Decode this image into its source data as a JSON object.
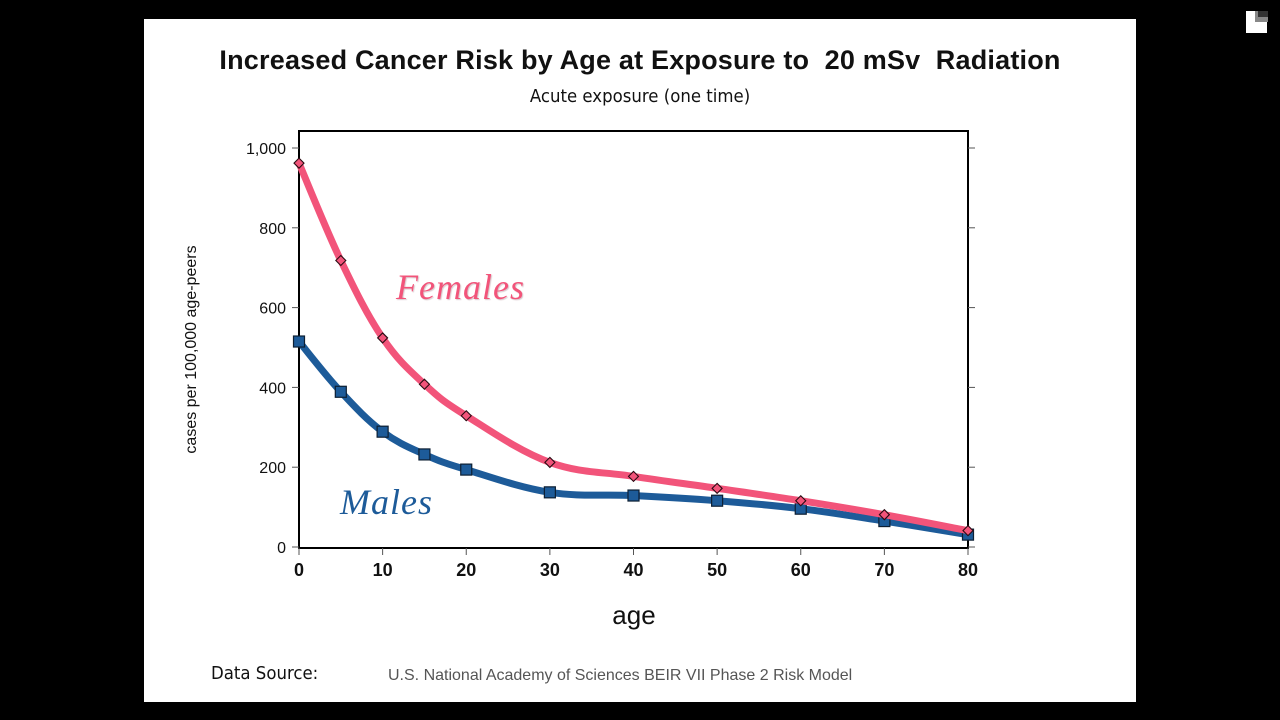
{
  "slide": {
    "title": "Increased Cancer Risk by Age at Exposure to  20 mSv  Radiation",
    "subtitle": "Acute exposure (one time)",
    "source_label": "Data Source:",
    "source_text": "U.S. National Academy of Sciences BEIR VII Phase 2 Risk Model"
  },
  "corner_icon": "page-corner-icon",
  "chart_data": {
    "type": "line",
    "title": "Increased Cancer Risk by Age at Exposure to 20 mSv Radiation",
    "subtitle": "Acute exposure (one time)",
    "xlabel": "age",
    "ylabel": "cases per 100,000 age-peers",
    "xlim": [
      0,
      80
    ],
    "ylim": [
      0,
      1000
    ],
    "x_ticks": [
      0,
      10,
      20,
      30,
      40,
      50,
      60,
      70,
      80
    ],
    "x_tick_labels": [
      "0",
      "10",
      "20",
      "30",
      "40",
      "50",
      "60",
      "70",
      "80"
    ],
    "y_ticks": [
      0,
      200,
      400,
      600,
      800,
      1000
    ],
    "y_tick_labels": [
      "0",
      "200",
      "400",
      "600",
      "800",
      "1,000"
    ],
    "grid": false,
    "x": [
      0,
      5,
      10,
      15,
      20,
      30,
      40,
      50,
      60,
      70,
      80
    ],
    "series": [
      {
        "name": "Females",
        "color": "#f2547a",
        "marker": "diamond",
        "values": [
          962,
          718,
          524,
          408,
          329,
          212,
          177,
          147,
          116,
          81,
          41
        ]
      },
      {
        "name": "Males",
        "color": "#1d5b99",
        "marker": "square",
        "values": [
          515,
          389,
          289,
          232,
          194,
          137,
          129,
          116,
          96,
          65,
          31
        ]
      }
    ],
    "annotations": [
      {
        "text": "Females",
        "series": "Females"
      },
      {
        "text": "Males",
        "series": "Males"
      }
    ]
  }
}
